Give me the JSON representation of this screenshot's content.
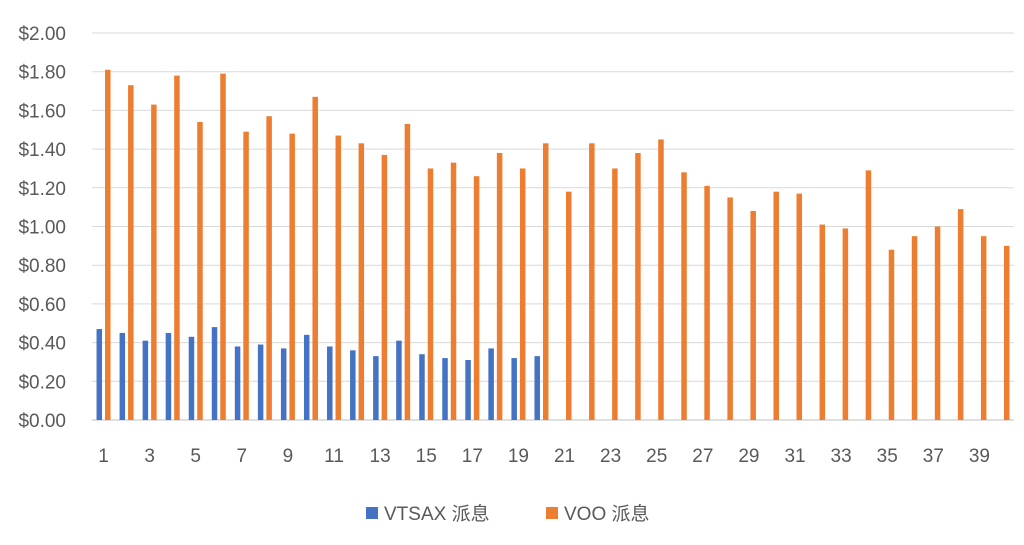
{
  "chart_data": {
    "type": "bar",
    "title": "",
    "xlabel": "",
    "ylabel": "",
    "ylim": [
      0,
      2.0
    ],
    "ytick_step": 0.2,
    "ytick_labels": [
      "$0.00",
      "$0.20",
      "$0.40",
      "$0.60",
      "$0.80",
      "$1.00",
      "$1.20",
      "$1.40",
      "$1.60",
      "$1.80",
      "$2.00"
    ],
    "grid": true,
    "legend_position": "bottom",
    "categories": [
      1,
      2,
      3,
      4,
      5,
      6,
      7,
      8,
      9,
      10,
      11,
      12,
      13,
      14,
      15,
      16,
      17,
      18,
      19,
      20,
      21,
      22,
      23,
      24,
      25,
      26,
      27,
      28,
      29,
      30,
      31,
      32,
      33,
      34,
      35,
      36,
      37,
      38,
      39,
      40
    ],
    "xtick_labels": [
      "1",
      "3",
      "5",
      "7",
      "9",
      "11",
      "13",
      "15",
      "17",
      "19",
      "21",
      "23",
      "25",
      "27",
      "29",
      "31",
      "33",
      "35",
      "37",
      "39"
    ],
    "series": [
      {
        "name": "VTSAX 派息",
        "color": "#4472C4",
        "values": [
          0.47,
          0.45,
          0.41,
          0.45,
          0.43,
          0.48,
          0.38,
          0.39,
          0.37,
          0.44,
          0.38,
          0.36,
          0.33,
          0.41,
          0.34,
          0.32,
          0.31,
          0.37,
          0.32,
          0.33,
          null,
          null,
          null,
          null,
          null,
          null,
          null,
          null,
          null,
          null,
          null,
          null,
          null,
          null,
          null,
          null,
          null,
          null,
          null,
          null
        ]
      },
      {
        "name": "VOO 派息",
        "color": "#ED7D31",
        "values": [
          1.81,
          1.73,
          1.63,
          1.78,
          1.54,
          1.79,
          1.49,
          1.57,
          1.48,
          1.67,
          1.47,
          1.43,
          1.37,
          1.53,
          1.3,
          1.33,
          1.26,
          1.38,
          1.3,
          1.43,
          1.18,
          1.43,
          1.3,
          1.38,
          1.45,
          1.28,
          1.21,
          1.15,
          1.08,
          1.18,
          1.17,
          1.01,
          0.99,
          1.29,
          0.88,
          0.95,
          1.0,
          1.09,
          0.95,
          0.9
        ]
      }
    ]
  }
}
